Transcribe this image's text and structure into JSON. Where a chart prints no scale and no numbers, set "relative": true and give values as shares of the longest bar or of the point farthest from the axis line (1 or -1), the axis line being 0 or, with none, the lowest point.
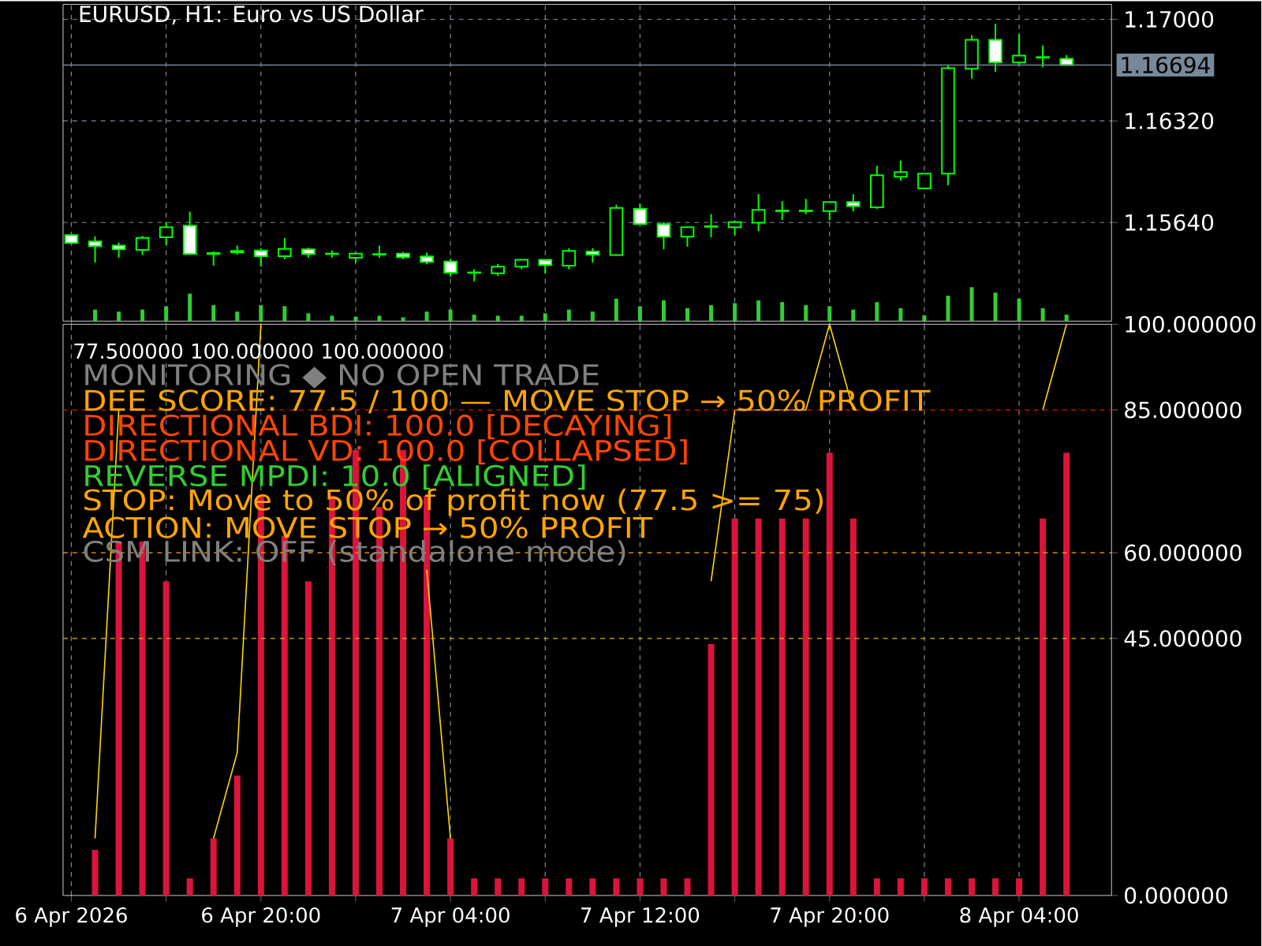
{
  "chart_data": [
    {
      "type": "candlestick",
      "title": "EURUSD, H1:  Euro vs US Dollar",
      "color": "#00ff00",
      "categories": [
        null,
        null,
        null,
        null,
        null,
        null,
        null,
        null,
        null,
        null,
        null,
        null,
        null,
        null,
        null,
        null,
        null,
        null,
        null,
        null,
        null,
        null,
        null,
        null,
        null,
        null,
        null,
        null,
        null,
        null,
        null,
        null,
        null,
        null,
        null,
        null,
        null,
        null,
        null,
        null,
        null,
        null,
        null
      ],
      "ohlc": [
        [
          1.15556,
          1.1556,
          1.155,
          1.15503
        ],
        [
          1.15513,
          1.15548,
          1.15372,
          1.15482
        ],
        [
          1.15485,
          1.15506,
          1.15404,
          1.15461
        ],
        [
          1.15456,
          1.15551,
          1.15422,
          1.15537
        ],
        [
          1.15541,
          1.15643,
          1.15488,
          1.15608
        ],
        [
          1.15619,
          1.15713,
          1.15429,
          1.15429
        ],
        [
          1.15436,
          1.15446,
          1.15351,
          1.15429
        ],
        [
          1.1544,
          1.15485,
          1.15425,
          1.1545
        ],
        [
          1.15453,
          1.15467,
          1.15345,
          1.15414
        ],
        [
          1.15414,
          1.15537,
          1.15393,
          1.15463
        ],
        [
          1.15461,
          1.15471,
          1.15404,
          1.15429
        ],
        [
          1.15429,
          1.15453,
          1.15404,
          1.15432
        ],
        [
          1.15404,
          1.15439,
          1.1537,
          1.15432
        ],
        [
          1.15429,
          1.15485,
          1.15404,
          1.15425
        ],
        [
          1.15432,
          1.15443,
          1.15394,
          1.15408
        ],
        [
          1.15413,
          1.15439,
          1.15361,
          1.15376
        ],
        [
          1.15379,
          1.15397,
          1.15278,
          1.15303
        ],
        [
          1.15303,
          1.15327,
          1.15246,
          1.15306
        ],
        [
          1.15299,
          1.15362,
          1.15282,
          1.15345
        ],
        [
          1.15345,
          1.1539,
          1.15327,
          1.1539
        ],
        [
          1.1539,
          1.15393,
          1.15299,
          1.15355
        ],
        [
          1.15351,
          1.15467,
          1.15327,
          1.1545
        ],
        [
          1.15446,
          1.15467,
          1.15372,
          1.15425
        ],
        [
          1.15422,
          1.15759,
          1.15418,
          1.15738
        ],
        [
          1.15731,
          1.15766,
          1.15629,
          1.15629
        ],
        [
          1.15629,
          1.15643,
          1.15461,
          1.15545
        ],
        [
          1.15545,
          1.15611,
          1.15478,
          1.15608
        ],
        [
          1.15611,
          1.15696,
          1.15541,
          1.15615
        ],
        [
          1.15608,
          1.15654,
          1.15555,
          1.15643
        ],
        [
          1.15639,
          1.1583,
          1.15583,
          1.15724
        ],
        [
          1.15716,
          1.15783,
          1.15657,
          1.1572
        ],
        [
          1.1572,
          1.15798,
          1.15696,
          1.15716
        ],
        [
          1.15716,
          1.1578,
          1.15654,
          1.15777
        ],
        [
          1.15777,
          1.1583,
          1.15714,
          1.15749
        ],
        [
          1.15741,
          1.1602,
          1.15731,
          1.15956
        ],
        [
          1.15946,
          1.16054,
          1.1592,
          1.15977
        ],
        [
          1.15868,
          1.1597,
          1.15868,
          1.15967
        ],
        [
          1.15967,
          1.1669,
          1.15889,
          1.16673
        ],
        [
          1.16669,
          1.16894,
          1.16603,
          1.16863
        ],
        [
          1.16863,
          1.16971,
          1.16648,
          1.16711
        ],
        [
          1.16711,
          1.16905,
          1.16697,
          1.16757
        ],
        [
          1.16747,
          1.16825,
          1.16679,
          1.16743
        ],
        [
          1.16736,
          1.1676,
          1.1669,
          1.16694
        ]
      ],
      "ylim": [
        1.1498,
        1.171
      ],
      "yticks": [
        {
          "value": 1.1564,
          "label": "1.15640"
        },
        {
          "value": 1.1632,
          "label": "1.16320"
        },
        {
          "value": 1.17,
          "label": "1.17000"
        }
      ],
      "tick_labels": "y",
      "grid": true,
      "ref_lines": [
        {
          "axis": "y",
          "value": 1.16694,
          "label": "1.16694",
          "color": "#778899",
          "line_style": "solid"
        }
      ]
    },
    {
      "type": "bar",
      "relative": true,
      "color": "#32cd32",
      "tick_labels": false,
      "categories": [
        null,
        null,
        null,
        null,
        null,
        null,
        null,
        null,
        null,
        null,
        null,
        null,
        null,
        null,
        null,
        null,
        null,
        null,
        null,
        null,
        null,
        null,
        null,
        null,
        null,
        null,
        null,
        null,
        null,
        null,
        null,
        null,
        null,
        null,
        null,
        null,
        null,
        null,
        null,
        null,
        null,
        null,
        null
      ],
      "values": [
        null,
        0.34,
        0.28,
        0.34,
        0.44,
        0.81,
        0.47,
        0.28,
        0.47,
        0.44,
        0.23,
        0.16,
        0.13,
        0.16,
        0.11,
        0.28,
        0.34,
        0.19,
        0.16,
        0.16,
        0.23,
        0.34,
        0.28,
        0.66,
        0.44,
        0.61,
        0.38,
        0.47,
        0.53,
        0.61,
        0.56,
        0.47,
        0.44,
        0.34,
        0.56,
        0.38,
        0.17,
        0.75,
        1,
        0.84,
        0.66,
        0.38,
        0.19
      ]
    },
    {
      "type": "bar",
      "categories": [
        "6 Apr 2026",
        null,
        null,
        null,
        null,
        null,
        null,
        null,
        "6 Apr 20:00",
        null,
        null,
        null,
        null,
        null,
        null,
        null,
        "7 Apr 04:00",
        null,
        null,
        null,
        null,
        null,
        null,
        null,
        "7 Apr 12:00",
        null,
        null,
        null,
        null,
        null,
        null,
        null,
        "7 Apr 20:00",
        null,
        null,
        null,
        null,
        null,
        null,
        null,
        "8 Apr 04:00",
        null,
        null
      ],
      "series": [
        {
          "type": "bar",
          "color": "#dc143c",
          "values": [
            null,
            8,
            62,
            62,
            55,
            3,
            10,
            21,
            70,
            63,
            55,
            70,
            78,
            68,
            78,
            70,
            10,
            3,
            3,
            3,
            3,
            3,
            3,
            3,
            3,
            3,
            3,
            44,
            66,
            66,
            66,
            66,
            77.5,
            66,
            3,
            3,
            3,
            3,
            3,
            3,
            3,
            66,
            77.5
          ]
        },
        {
          "type": "line",
          "color": "#ffd700",
          "values": [
            null,
            10,
            85,
            null,
            null,
            null,
            10,
            25,
            100,
            null,
            null,
            null,
            null,
            null,
            null,
            57,
            10,
            null,
            null,
            null,
            null,
            null,
            null,
            null,
            null,
            null,
            null,
            55,
            85,
            85,
            85,
            85,
            100,
            85,
            null,
            null,
            null,
            null,
            null,
            null,
            null,
            85,
            100
          ]
        }
      ],
      "ylim": [
        0,
        100
      ],
      "yticks": [
        {
          "value": 0,
          "label": "0.000000"
        },
        {
          "value": 45,
          "label": "45.000000"
        },
        {
          "value": 60,
          "label": "60.000000"
        },
        {
          "value": 85,
          "label": "85.000000"
        },
        {
          "value": 100,
          "label": "100.000000"
        }
      ],
      "grid": "x",
      "ref_lines": [
        {
          "axis": "y",
          "value": 85,
          "color": "#d00000",
          "line_style": "dashed"
        },
        {
          "axis": "y",
          "value": 60,
          "color": "#ffa500",
          "line_style": "dashed"
        },
        {
          "axis": "y",
          "value": 45,
          "color": "#e6b800",
          "line_style": "dashed"
        }
      ],
      "annotations": [
        "77.500000 100.000000 100.000000",
        "MONITORING ◆ NO OPEN TRADE",
        "DEE SCORE: 77.5 / 100 — MOVE STOP → 50% PROFIT",
        "DIRECTIONAL BDI: 100.0  [DECAYING]",
        "DIRECTIONAL VD: 100.0  [COLLAPSED]",
        "REVERSE MPDI: 10.0  [ALIGNED]",
        "STOP: Move to 50% of profit now  (77.5 >= 75)",
        "ACTION: MOVE STOP → 50% PROFIT",
        "CSM LINK: OFF (standalone mode)"
      ]
    }
  ]
}
